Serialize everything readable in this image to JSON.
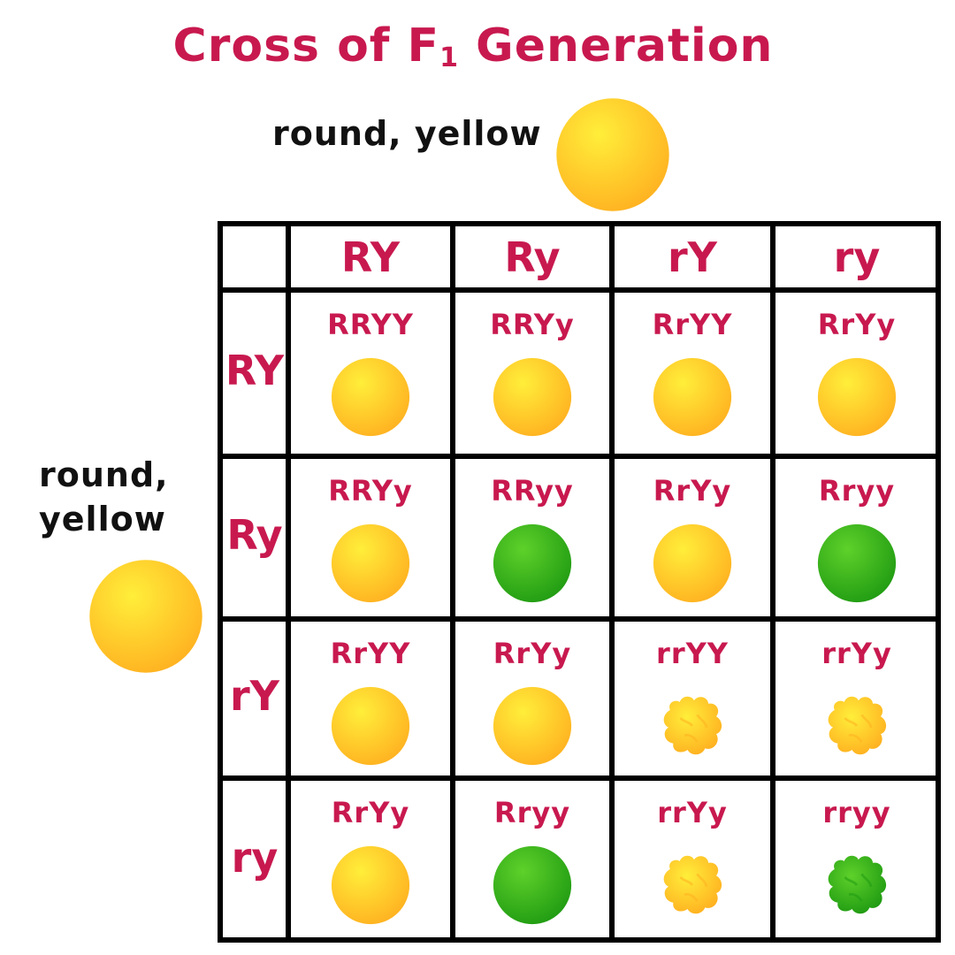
{
  "title": {
    "main": "Cross of F",
    "subscript": "1",
    "rest": " Generation"
  },
  "parents": {
    "top_label": "round, yellow",
    "left_label_line1": "round,",
    "left_label_line2": "yellow"
  },
  "columns": [
    "RY",
    "Ry",
    "rY",
    "ry"
  ],
  "rows": [
    "RY",
    "Ry",
    "rY",
    "ry"
  ],
  "cells": [
    [
      {
        "genotype": "RRYY",
        "shape": "round",
        "color": "yellow"
      },
      {
        "genotype": "RRYy",
        "shape": "round",
        "color": "yellow"
      },
      {
        "genotype": "RrYY",
        "shape": "round",
        "color": "yellow"
      },
      {
        "genotype": "RrYy",
        "shape": "round",
        "color": "yellow"
      }
    ],
    [
      {
        "genotype": "RRYy",
        "shape": "round",
        "color": "yellow"
      },
      {
        "genotype": "RRyy",
        "shape": "round",
        "color": "green"
      },
      {
        "genotype": "RrYy",
        "shape": "round",
        "color": "yellow"
      },
      {
        "genotype": "Rryy",
        "shape": "round",
        "color": "green"
      }
    ],
    [
      {
        "genotype": "RrYY",
        "shape": "round",
        "color": "yellow"
      },
      {
        "genotype": "RrYy",
        "shape": "round",
        "color": "yellow"
      },
      {
        "genotype": "rrYY",
        "shape": "wrinkled",
        "color": "yellow"
      },
      {
        "genotype": "rrYy",
        "shape": "wrinkled",
        "color": "yellow"
      }
    ],
    [
      {
        "genotype": "RrYy",
        "shape": "round",
        "color": "yellow"
      },
      {
        "genotype": "Rryy",
        "shape": "round",
        "color": "green"
      },
      {
        "genotype": "rrYy",
        "shape": "wrinkled",
        "color": "yellow"
      },
      {
        "genotype": "rryy",
        "shape": "wrinkled",
        "color": "green"
      }
    ]
  ],
  "colors": {
    "accent": "#c8194f",
    "text": "#111111",
    "grid": "#000000",
    "yellow_light": "#ffee3a",
    "yellow_dark": "#ffb020",
    "green_light": "#5ed12a",
    "green_dark": "#1f9a12"
  }
}
